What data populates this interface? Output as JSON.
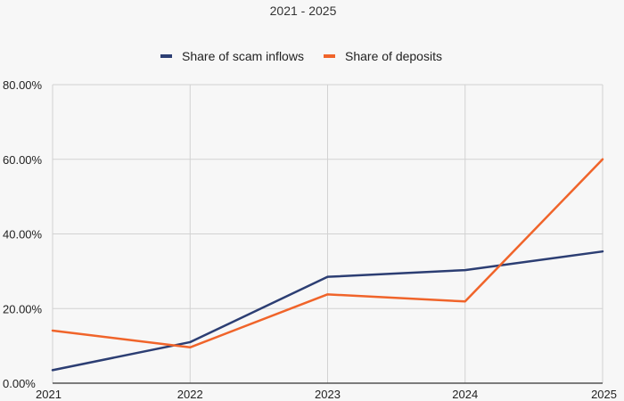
{
  "chart_data": {
    "type": "line",
    "title": "",
    "subtitle": "2021 - 2025",
    "xlabel": "",
    "ylabel": "",
    "x": [
      2021,
      2022,
      2023,
      2024,
      2025
    ],
    "x_tick_labels": [
      "2021",
      "2022",
      "2023",
      "2024",
      "2025"
    ],
    "ylim": [
      0,
      80
    ],
    "y_ticks": [
      0,
      20,
      40,
      60,
      80
    ],
    "y_tick_labels": [
      "0.00%",
      "20.00%",
      "40.00%",
      "60.00%",
      "80.00%"
    ],
    "grid": true,
    "legend_position": "top",
    "series": [
      {
        "name": "Share of scam inflows",
        "color": "#2c3e73",
        "values": [
          3.5,
          11.0,
          28.5,
          30.3,
          35.3
        ]
      },
      {
        "name": "Share of deposits",
        "color": "#f0642a",
        "values": [
          14.1,
          9.6,
          23.8,
          21.9,
          60.0
        ]
      }
    ]
  }
}
